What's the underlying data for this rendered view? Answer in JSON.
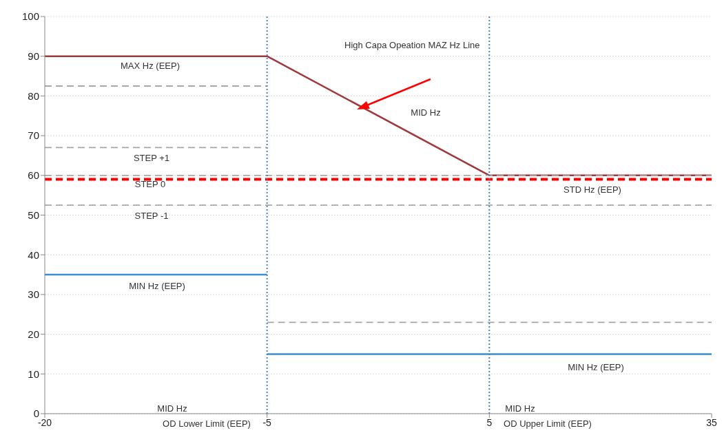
{
  "chart_data": {
    "type": "line",
    "categories": [
      "-20",
      "-5",
      "5",
      "35"
    ],
    "series": [
      {
        "color": "#a0393b",
        "values": [
          90,
          90,
          60,
          60
        ],
        "line_style": "solid"
      },
      {
        "color": "#3a8fd0",
        "values": [
          35,
          35,
          null,
          null
        ],
        "line_style": "solid"
      },
      {
        "color": "#3a8fd0",
        "values": [
          null,
          15,
          15,
          15
        ],
        "line_style": "solid"
      },
      {
        "color": "#a6a6a6",
        "values": [
          82.5,
          82.5,
          null,
          null
        ],
        "line_style": "dashed"
      },
      {
        "color": "#a6a6a6",
        "values": [
          67,
          67,
          null,
          null
        ],
        "line_style": "dashed"
      },
      {
        "color": "#a6a6a6",
        "values": [
          60,
          60,
          60,
          60
        ],
        "line_style": "dashed"
      },
      {
        "color": "#a6a6a6",
        "values": [
          52.5,
          52.5,
          52.5,
          52.5
        ],
        "line_style": "dashed"
      },
      {
        "color": "#a6a6a6",
        "values": [
          null,
          23,
          23,
          23
        ],
        "line_style": "dashed"
      }
    ],
    "ylim": [
      0,
      100
    ],
    "yticks": [
      0,
      10,
      20,
      30,
      40,
      50,
      60,
      70,
      80,
      90,
      100
    ],
    "grid": "y",
    "marker": "none",
    "ref_lines": [
      {
        "axis": "y",
        "value": 59,
        "color": "#ff0000",
        "line_style": "dashed"
      },
      {
        "axis": "x",
        "value": "-5",
        "color": "#4a7fc0",
        "line_style": "dotted"
      },
      {
        "axis": "x",
        "value": "5",
        "color": "#4a7fc0",
        "line_style": "dotted"
      }
    ],
    "annotations": [
      "High Capa Opeation MAZ Hz Line",
      "MAX Hz (EEP)",
      "MID Hz",
      "STEP +1",
      "STEP 0",
      "STEP -1",
      "STD Hz (EEP)",
      "MIN Hz (EEP)",
      "MIN Hz (EEP)",
      "MID Hz",
      "OD Lower Limit (EEP)",
      "MID Hz",
      "OD Upper Limit (EEP)"
    ]
  }
}
